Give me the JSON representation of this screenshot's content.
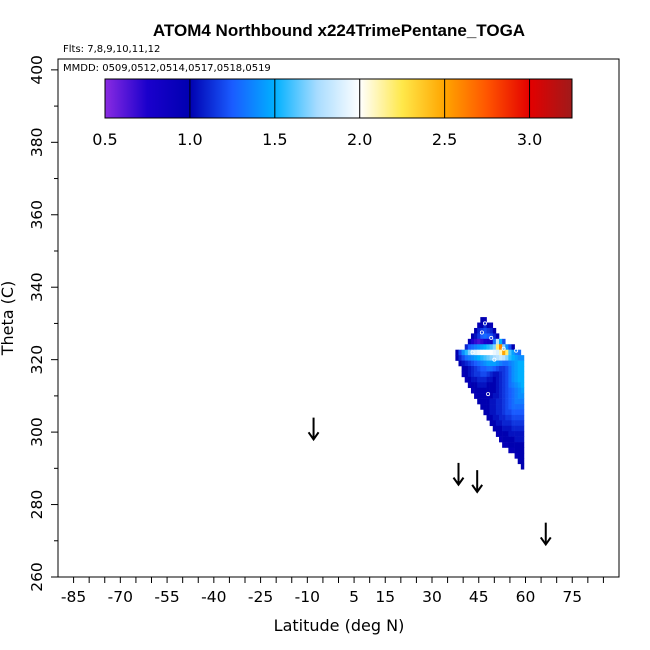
{
  "chart_data": {
    "type": "heatmap",
    "title": "ATOM4 Northbound x224TrimePentane_TOGA",
    "flights_text": "Flts: 7,8,9,10,11,12",
    "mmdd_text": "MMDD: 0509,0512,0514,0517,0518,0519",
    "xlabel": "Latitude (deg N)",
    "ylabel": "Theta (C)",
    "xlim": [
      -90,
      90
    ],
    "ylim": [
      260,
      403
    ],
    "x_ticks": [
      -85,
      -70,
      -55,
      -40,
      -25,
      -10,
      5,
      15,
      30,
      45,
      60,
      75
    ],
    "y_ticks": [
      260,
      280,
      300,
      320,
      340,
      360,
      380,
      400
    ],
    "colorbar": {
      "min": 0.5,
      "max": 3.25,
      "ticks": [
        "0.5",
        "1.0",
        "1.5",
        "2.0",
        "2.5",
        "3.0"
      ],
      "stops": [
        {
          "v": 0.5,
          "c": "#8a2be2"
        },
        {
          "v": 0.75,
          "c": "#1a00cc"
        },
        {
          "v": 1.0,
          "c": "#0000b0"
        },
        {
          "v": 1.25,
          "c": "#1a5cff"
        },
        {
          "v": 1.5,
          "c": "#00b0ff"
        },
        {
          "v": 1.75,
          "c": "#a8dcff"
        },
        {
          "v": 2.0,
          "c": "#ffffff"
        },
        {
          "v": 2.25,
          "c": "#ffe84a"
        },
        {
          "v": 2.5,
          "c": "#ffa500"
        },
        {
          "v": 2.75,
          "c": "#ff5500"
        },
        {
          "v": 3.0,
          "c": "#e30000"
        },
        {
          "v": 3.25,
          "c": "#a01a1a"
        }
      ]
    },
    "cell_size": {
      "lat": 1,
      "theta": 1.5
    },
    "heatmap_rows": [
      {
        "theta": 331,
        "lat_min": 46,
        "lat_max": 47,
        "values": [
          1.0,
          0.95
        ]
      },
      {
        "theta": 329.5,
        "lat_min": 45,
        "lat_max": 49,
        "values": [
          0.95,
          1.0,
          1.1,
          1.0,
          0.95
        ]
      },
      {
        "theta": 328,
        "lat_min": 44,
        "lat_max": 50,
        "values": [
          1.0,
          1.1,
          1.15,
          1.2,
          1.15,
          1.1,
          1.0
        ]
      },
      {
        "theta": 326.5,
        "lat_min": 43,
        "lat_max": 51,
        "values": [
          1.0,
          1.05,
          1.15,
          1.25,
          1.3,
          1.25,
          1.2,
          1.1,
          1.0
        ]
      },
      {
        "theta": 325,
        "lat_min": 42,
        "lat_max": 53,
        "values": [
          0.95,
          0.75,
          0.7,
          0.65,
          0.7,
          0.75,
          0.8,
          0.85,
          1.3,
          1.8,
          1.5,
          1.2
        ]
      },
      {
        "theta": 323.5,
        "lat_min": 41,
        "lat_max": 56,
        "values": [
          1.1,
          1.25,
          1.3,
          1.35,
          1.4,
          1.45,
          1.5,
          1.55,
          1.6,
          1.7,
          2.2,
          2.6,
          1.7,
          1.4,
          1.2,
          1.0
        ]
      },
      {
        "theta": 322,
        "lat_min": 38,
        "lat_max": 58,
        "values": [
          1.0,
          1.2,
          1.4,
          1.55,
          1.7,
          1.8,
          1.9,
          1.95,
          2.0,
          2.0,
          2.0,
          2.0,
          1.95,
          1.9,
          2.1,
          2.5,
          2.2,
          1.6,
          1.45,
          1.35,
          1.3
        ]
      },
      {
        "theta": 320.5,
        "lat_min": 38,
        "lat_max": 59,
        "values": [
          1.0,
          1.1,
          1.2,
          1.3,
          1.35,
          1.4,
          1.45,
          1.5,
          1.55,
          1.6,
          1.65,
          1.7,
          1.75,
          1.8,
          1.85,
          1.8,
          1.7,
          1.55,
          1.5,
          1.45,
          1.4,
          1.4
        ]
      },
      {
        "theta": 319,
        "lat_min": 39,
        "lat_max": 59,
        "values": [
          1.0,
          1.05,
          1.1,
          1.15,
          1.2,
          1.25,
          1.3,
          1.35,
          1.4,
          1.45,
          1.45,
          1.45,
          1.4,
          1.35,
          1.3,
          1.3,
          1.35,
          1.4,
          1.45,
          1.5,
          1.5
        ]
      },
      {
        "theta": 317.5,
        "lat_min": 40,
        "lat_max": 59,
        "values": [
          1.0,
          1.0,
          1.05,
          1.1,
          1.15,
          1.2,
          1.25,
          1.25,
          1.3,
          1.3,
          1.25,
          1.2,
          1.15,
          1.15,
          1.2,
          1.3,
          1.4,
          1.45,
          1.5,
          1.5
        ]
      },
      {
        "theta": 316,
        "lat_min": 40,
        "lat_max": 59,
        "values": [
          0.95,
          1.0,
          1.05,
          1.1,
          1.15,
          1.15,
          1.2,
          1.2,
          1.15,
          1.1,
          1.05,
          1.05,
          1.1,
          1.15,
          1.2,
          1.3,
          1.4,
          1.45,
          1.5,
          1.5
        ]
      },
      {
        "theta": 314.5,
        "lat_min": 41,
        "lat_max": 59,
        "values": [
          0.95,
          1.0,
          1.05,
          1.05,
          1.1,
          1.1,
          1.1,
          1.05,
          1.05,
          1.0,
          1.05,
          1.1,
          1.15,
          1.2,
          1.3,
          1.4,
          1.45,
          1.5,
          1.5
        ]
      },
      {
        "theta": 313,
        "lat_min": 42,
        "lat_max": 59,
        "values": [
          0.95,
          1.0,
          1.0,
          1.05,
          1.05,
          1.05,
          1.0,
          1.0,
          1.0,
          1.05,
          1.1,
          1.15,
          1.2,
          1.3,
          1.35,
          1.4,
          1.45,
          1.5
        ]
      },
      {
        "theta": 311.5,
        "lat_min": 43,
        "lat_max": 59,
        "values": [
          0.95,
          1.0,
          1.0,
          1.0,
          1.0,
          1.0,
          1.0,
          1.0,
          1.05,
          1.1,
          1.15,
          1.2,
          1.25,
          1.3,
          1.35,
          1.4,
          1.45
        ]
      },
      {
        "theta": 310,
        "lat_min": 44,
        "lat_max": 59,
        "values": [
          0.95,
          1.0,
          1.0,
          1.0,
          1.0,
          1.0,
          1.05,
          1.05,
          1.1,
          1.15,
          1.2,
          1.25,
          1.3,
          1.35,
          1.4,
          1.4
        ]
      },
      {
        "theta": 308.5,
        "lat_min": 45,
        "lat_max": 59,
        "values": [
          1.0,
          1.0,
          1.0,
          1.0,
          1.05,
          1.05,
          1.1,
          1.1,
          1.15,
          1.2,
          1.25,
          1.3,
          1.35,
          1.35,
          1.35
        ]
      },
      {
        "theta": 307,
        "lat_min": 46,
        "lat_max": 59,
        "values": [
          1.0,
          1.0,
          1.0,
          1.05,
          1.05,
          1.1,
          1.1,
          1.15,
          1.2,
          1.25,
          1.3,
          1.3,
          1.3,
          1.3
        ]
      },
      {
        "theta": 305.5,
        "lat_min": 47,
        "lat_max": 59,
        "values": [
          1.0,
          1.0,
          1.05,
          1.05,
          1.1,
          1.1,
          1.15,
          1.2,
          1.2,
          1.25,
          1.25,
          1.25,
          1.25
        ]
      },
      {
        "theta": 304,
        "lat_min": 48,
        "lat_max": 59,
        "values": [
          1.0,
          1.0,
          1.05,
          1.05,
          1.1,
          1.1,
          1.15,
          1.15,
          1.2,
          1.2,
          1.2,
          1.2
        ]
      },
      {
        "theta": 302.5,
        "lat_min": 49,
        "lat_max": 59,
        "values": [
          1.0,
          1.0,
          1.05,
          1.05,
          1.1,
          1.1,
          1.1,
          1.15,
          1.15,
          1.15,
          1.15
        ]
      },
      {
        "theta": 301,
        "lat_min": 50,
        "lat_max": 59,
        "values": [
          1.0,
          1.0,
          1.0,
          1.05,
          1.05,
          1.05,
          1.1,
          1.1,
          1.1,
          1.1
        ]
      },
      {
        "theta": 299.5,
        "lat_min": 51,
        "lat_max": 59,
        "values": [
          0.95,
          1.0,
          1.0,
          1.0,
          1.05,
          1.05,
          1.05,
          1.05,
          1.05
        ]
      },
      {
        "theta": 298,
        "lat_min": 52,
        "lat_max": 59,
        "values": [
          0.95,
          1.0,
          1.0,
          1.0,
          1.0,
          1.05,
          1.05,
          1.05
        ]
      },
      {
        "theta": 296.5,
        "lat_min": 53,
        "lat_max": 59,
        "values": [
          0.95,
          0.95,
          1.0,
          1.0,
          1.0,
          1.0,
          1.0
        ]
      },
      {
        "theta": 295,
        "lat_min": 55,
        "lat_max": 59,
        "values": [
          0.95,
          0.95,
          1.0,
          1.0,
          1.0
        ]
      },
      {
        "theta": 293.5,
        "lat_min": 57,
        "lat_max": 59,
        "values": [
          0.95,
          1.0,
          1.0
        ]
      },
      {
        "theta": 292,
        "lat_min": 58,
        "lat_max": 59,
        "values": [
          1.0,
          1.0
        ]
      },
      {
        "theta": 290.5,
        "lat_min": 59,
        "lat_max": 59,
        "values": [
          1.0
        ]
      }
    ],
    "sample_points": [
      {
        "lat": 47,
        "theta": 330
      },
      {
        "lat": 46,
        "theta": 327.5
      },
      {
        "lat": 49,
        "theta": 326
      },
      {
        "lat": 43,
        "theta": 322
      },
      {
        "lat": 53,
        "theta": 323
      },
      {
        "lat": 57,
        "theta": 322.5
      },
      {
        "lat": 50,
        "theta": 320
      },
      {
        "lat": 48,
        "theta": 310.5
      }
    ],
    "arrows": [
      {
        "lat": -8,
        "theta_top": 304,
        "theta_bottom": 298
      },
      {
        "lat": 38.5,
        "theta_top": 291.5,
        "theta_bottom": 285.5
      },
      {
        "lat": 44.5,
        "theta_top": 289.5,
        "theta_bottom": 283.5
      },
      {
        "lat": 66.5,
        "theta_top": 275,
        "theta_bottom": 269
      }
    ]
  }
}
